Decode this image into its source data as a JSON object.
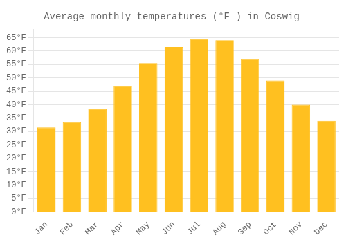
{
  "chart_data": {
    "type": "bar",
    "title": "Average monthly temperatures (°F ) in Coswig",
    "categories": [
      "Jan",
      "Feb",
      "Mar",
      "Apr",
      "May",
      "Jun",
      "Jul",
      "Aug",
      "Sep",
      "Oct",
      "Nov",
      "Dec"
    ],
    "values": [
      31.5,
      33.5,
      38.5,
      47.0,
      55.5,
      61.5,
      64.5,
      64.0,
      57.0,
      49.0,
      40.0,
      34.0
    ],
    "color": "#FFC020",
    "ylim": [
      0,
      68
    ],
    "yticks": [
      {
        "value": 0,
        "label": "0°F"
      },
      {
        "value": 5,
        "label": "5°F"
      },
      {
        "value": 10,
        "label": "10°F"
      },
      {
        "value": 15,
        "label": "15°F"
      },
      {
        "value": 20,
        "label": "20°F"
      },
      {
        "value": 25,
        "label": "25°F"
      },
      {
        "value": 30,
        "label": "30°F"
      },
      {
        "value": 35,
        "label": "35°F"
      },
      {
        "value": 40,
        "label": "40°F"
      },
      {
        "value": 45,
        "label": "45°F"
      },
      {
        "value": 50,
        "label": "50°F"
      },
      {
        "value": 55,
        "label": "55°F"
      },
      {
        "value": 60,
        "label": "60°F"
      },
      {
        "value": 65,
        "label": "65°F"
      }
    ],
    "grid": true
  }
}
